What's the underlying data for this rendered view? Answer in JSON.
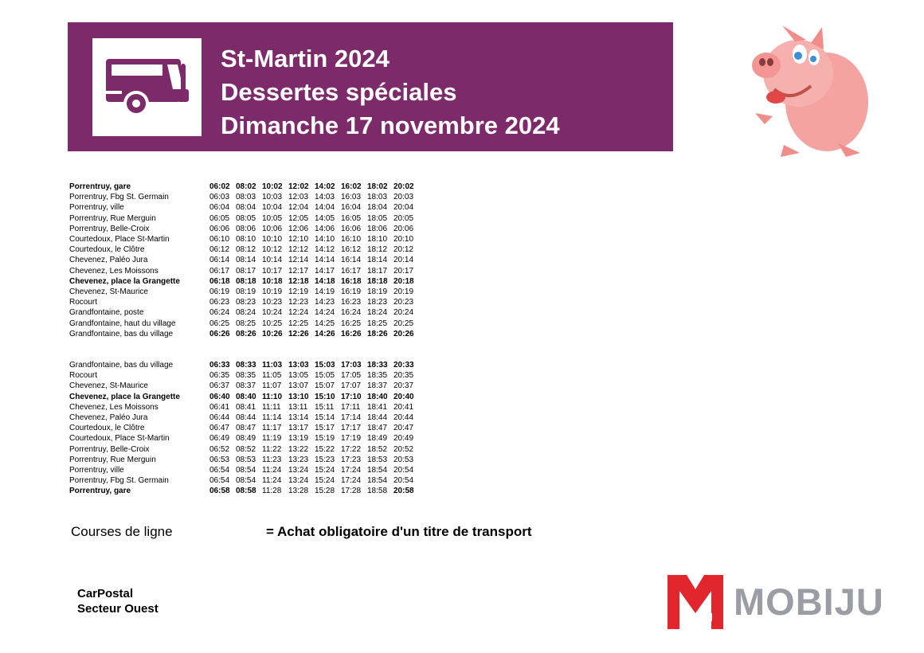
{
  "header": {
    "title_line1": "St-Martin 2024",
    "title_line2": "Dessertes spéciales",
    "title_line3": "Dimanche 17 novembre 2024",
    "banner_color": "#7d2a6b"
  },
  "icons": {
    "bus": "bus-icon",
    "mascot": "pig-mascot-icon"
  },
  "timetable_outbound": [
    {
      "stop": "Porrentruy, gare",
      "times": [
        "06:02",
        "08:02",
        "10:02",
        "12:02",
        "14:02",
        "16:02",
        "18:02",
        "20:02"
      ],
      "bold": true
    },
    {
      "stop": "Porrentruy, Fbg St. Germain",
      "times": [
        "06:03",
        "08:03",
        "10:03",
        "12:03",
        "14:03",
        "16:03",
        "18:03",
        "20:03"
      ],
      "bold": false
    },
    {
      "stop": "Porrentruy, ville",
      "times": [
        "06:04",
        "08:04",
        "10:04",
        "12:04",
        "14:04",
        "16:04",
        "18:04",
        "20:04"
      ],
      "bold": false
    },
    {
      "stop": "Porrentruy, Rue Merguin",
      "times": [
        "06:05",
        "08:05",
        "10:05",
        "12:05",
        "14:05",
        "16:05",
        "18:05",
        "20:05"
      ],
      "bold": false
    },
    {
      "stop": "Porrentruy, Belle-Croix",
      "times": [
        "06:06",
        "08:06",
        "10:06",
        "12:06",
        "14:06",
        "16:06",
        "18:06",
        "20:06"
      ],
      "bold": false
    },
    {
      "stop": "Courtedoux, Place St-Martin",
      "times": [
        "06:10",
        "08:10",
        "10:10",
        "12:10",
        "14:10",
        "16:10",
        "18:10",
        "20:10"
      ],
      "bold": false
    },
    {
      "stop": "Courtedoux, le Clôtre",
      "times": [
        "06:12",
        "08:12",
        "10:12",
        "12:12",
        "14:12",
        "16:12",
        "18:12",
        "20:12"
      ],
      "bold": false
    },
    {
      "stop": "Chevenez, Paléo Jura",
      "times": [
        "06:14",
        "08:14",
        "10:14",
        "12:14",
        "14:14",
        "16:14",
        "18:14",
        "20:14"
      ],
      "bold": false
    },
    {
      "stop": "Chevenez, Les Moissons",
      "times": [
        "06:17",
        "08:17",
        "10:17",
        "12:17",
        "14:17",
        "16:17",
        "18:17",
        "20:17"
      ],
      "bold": false
    },
    {
      "stop": "Chevenez, place la Grangette",
      "times": [
        "06:18",
        "08:18",
        "10:18",
        "12:18",
        "14:18",
        "16:18",
        "18:18",
        "20:18"
      ],
      "bold": true
    },
    {
      "stop": "Chevenez, St-Maurice",
      "times": [
        "06:19",
        "08:19",
        "10:19",
        "12:19",
        "14:19",
        "16:19",
        "18:19",
        "20:19"
      ],
      "bold": false
    },
    {
      "stop": "Rocourt",
      "times": [
        "06:23",
        "08:23",
        "10:23",
        "12:23",
        "14:23",
        "16:23",
        "18:23",
        "20:23"
      ],
      "bold": false
    },
    {
      "stop": "Grandfontaine, poste",
      "times": [
        "06:24",
        "08:24",
        "10:24",
        "12:24",
        "14:24",
        "16:24",
        "18:24",
        "20:24"
      ],
      "bold": false
    },
    {
      "stop": "Grandfontaine, haut du village",
      "times": [
        "06:25",
        "08:25",
        "10:25",
        "12:25",
        "14:25",
        "16:25",
        "18:25",
        "20:25"
      ],
      "bold": false
    },
    {
      "stop": "Grandfontaine, bas du village",
      "times": [
        "06:26",
        "08:26",
        "10:26",
        "12:26",
        "14:26",
        "16:26",
        "18:26",
        "20:26"
      ],
      "bold": false,
      "bold_times": true
    }
  ],
  "timetable_return": [
    {
      "stop": "Grandfontaine, bas du village",
      "times": [
        "06:33",
        "08:33",
        "11:03",
        "13:03",
        "15:03",
        "17:03",
        "18:33",
        "20:33"
      ],
      "bold": false,
      "bold_times": true
    },
    {
      "stop": "Rocourt",
      "times": [
        "06:35",
        "08:35",
        "11:05",
        "13:05",
        "15:05",
        "17:05",
        "18:35",
        "20:35"
      ],
      "bold": false
    },
    {
      "stop": "Chevenez, St-Maurice",
      "times": [
        "06:37",
        "08:37",
        "11:07",
        "13:07",
        "15:07",
        "17:07",
        "18:37",
        "20:37"
      ],
      "bold": false
    },
    {
      "stop": "Chevenez, place la Grangette",
      "times": [
        "06:40",
        "08:40",
        "11:10",
        "13:10",
        "15:10",
        "17:10",
        "18:40",
        "20:40"
      ],
      "bold": true
    },
    {
      "stop": "Chevenez, Les Moissons",
      "times": [
        "06:41",
        "08:41",
        "11:11",
        "13:11",
        "15:11",
        "17:11",
        "18:41",
        "20:41"
      ],
      "bold": false
    },
    {
      "stop": "Chevenez, Paléo Jura",
      "times": [
        "06:44",
        "08:44",
        "11:14",
        "13:14",
        "15:14",
        "17:14",
        "18:44",
        "20:44"
      ],
      "bold": false
    },
    {
      "stop": "Courtedoux, le Clôtre",
      "times": [
        "06:47",
        "08:47",
        "11:17",
        "13:17",
        "15:17",
        "17:17",
        "18:47",
        "20:47"
      ],
      "bold": false
    },
    {
      "stop": "Courtedoux, Place St-Martin",
      "times": [
        "06:49",
        "08:49",
        "11:19",
        "13:19",
        "15:19",
        "17:19",
        "18:49",
        "20:49"
      ],
      "bold": false
    },
    {
      "stop": "Porrentruy, Belle-Croix",
      "times": [
        "06:52",
        "08:52",
        "11:22",
        "13:22",
        "15:22",
        "17:22",
        "18:52",
        "20:52"
      ],
      "bold": false
    },
    {
      "stop": "Porrentruy, Rue Merguin",
      "times": [
        "06:53",
        "08:53",
        "11:23",
        "13:23",
        "15:23",
        "17:23",
        "18:53",
        "20:53"
      ],
      "bold": false
    },
    {
      "stop": "Porrentruy, ville",
      "times": [
        "06:54",
        "08:54",
        "11:24",
        "13:24",
        "15:24",
        "17:24",
        "18:54",
        "20:54"
      ],
      "bold": false
    },
    {
      "stop": "Porrentruy, Fbg St. Germain",
      "times": [
        "06:54",
        "08:54",
        "11:24",
        "13:24",
        "15:24",
        "17:24",
        "18:54",
        "20:54"
      ],
      "bold": false
    },
    {
      "stop": "Porrentruy, gare",
      "times": [
        "06:58",
        "08:58",
        "11:28",
        "13:28",
        "15:28",
        "17:28",
        "18:58",
        "20:58"
      ],
      "bold": true,
      "bold_cols": [
        0,
        1,
        7
      ]
    }
  ],
  "legend": {
    "line_courses": "Courses de ligne",
    "ticket_note": "= Achat obligatoire d'un titre de transport"
  },
  "operator": {
    "line1": "CarPostal",
    "line2": "Secteur Ouest"
  },
  "logo": {
    "text": "MOBIJU",
    "red": "#e1262d",
    "grey": "#9a9ea4"
  }
}
